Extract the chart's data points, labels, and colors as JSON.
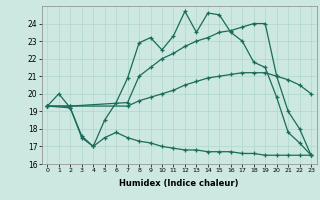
{
  "xlabel": "Humidex (Indice chaleur)",
  "background_color": "#cce8e0",
  "grid_color": "#b0d8cc",
  "line_color": "#1a6b5a",
  "xlim": [
    -0.5,
    23.5
  ],
  "ylim": [
    16,
    25
  ],
  "yticks": [
    16,
    17,
    18,
    19,
    20,
    21,
    22,
    23,
    24
  ],
  "xticks": [
    0,
    1,
    2,
    3,
    4,
    5,
    6,
    7,
    8,
    9,
    10,
    11,
    12,
    13,
    14,
    15,
    16,
    17,
    18,
    19,
    20,
    21,
    22,
    23
  ],
  "series": [
    {
      "x": [
        0,
        1,
        2,
        3,
        4,
        5,
        6,
        7,
        8,
        9,
        10,
        11,
        12,
        13,
        14,
        15,
        16,
        17,
        18,
        19,
        20,
        21,
        22,
        23
      ],
      "y": [
        19.3,
        20.0,
        19.2,
        17.5,
        17.0,
        18.5,
        19.5,
        20.9,
        22.9,
        23.2,
        22.5,
        23.3,
        24.7,
        23.5,
        24.6,
        24.5,
        23.5,
        23.0,
        21.8,
        21.5,
        19.8,
        17.8,
        17.2,
        16.5
      ]
    },
    {
      "x": [
        0,
        2,
        7,
        8,
        9,
        10,
        11,
        12,
        13,
        14,
        15,
        16,
        17,
        18,
        19,
        20,
        21,
        22,
        23
      ],
      "y": [
        19.3,
        19.3,
        19.5,
        21.0,
        21.5,
        22.0,
        22.3,
        22.7,
        23.0,
        23.2,
        23.5,
        23.6,
        23.8,
        24.0,
        24.0,
        21.0,
        19.0,
        18.0,
        16.5
      ]
    },
    {
      "x": [
        0,
        2,
        7,
        8,
        9,
        10,
        11,
        12,
        13,
        14,
        15,
        16,
        17,
        18,
        19,
        20,
        21,
        22,
        23
      ],
      "y": [
        19.3,
        19.3,
        19.3,
        19.6,
        19.8,
        20.0,
        20.2,
        20.5,
        20.7,
        20.9,
        21.0,
        21.1,
        21.2,
        21.2,
        21.2,
        21.0,
        20.8,
        20.5,
        20.0
      ]
    },
    {
      "x": [
        0,
        2,
        3,
        4,
        5,
        6,
        7,
        8,
        9,
        10,
        11,
        12,
        13,
        14,
        15,
        16,
        17,
        18,
        19,
        20,
        21,
        22,
        23
      ],
      "y": [
        19.3,
        19.2,
        17.6,
        17.0,
        17.5,
        17.8,
        17.5,
        17.3,
        17.2,
        17.0,
        16.9,
        16.8,
        16.8,
        16.7,
        16.7,
        16.7,
        16.6,
        16.6,
        16.5,
        16.5,
        16.5,
        16.5,
        16.5
      ]
    }
  ]
}
